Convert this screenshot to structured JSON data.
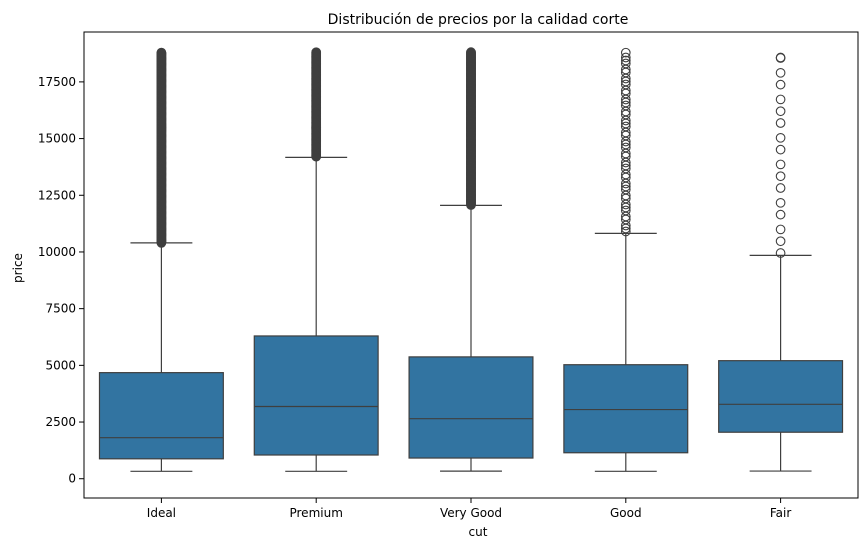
{
  "chart_data": {
    "type": "box",
    "title": "Distribución de precios por la calidad corte",
    "xlabel": "cut",
    "ylabel": "price",
    "ylim": [
      -850,
      19700
    ],
    "yticks": [
      0,
      2500,
      5000,
      7500,
      10000,
      12500,
      15000,
      17500
    ],
    "categories": [
      "Ideal",
      "Premium",
      "Very Good",
      "Good",
      "Fair"
    ],
    "box_color": "#3274a1",
    "line_color": "#3f3f3f",
    "grid": false,
    "boxes": [
      {
        "category": "Ideal",
        "whisker_low": 326,
        "q1": 878,
        "median": 1810,
        "q3": 4678,
        "whisker_high": 10400,
        "outlier_min": 10400,
        "outlier_max": 18806,
        "outlier_style": "dense"
      },
      {
        "category": "Premium",
        "whisker_low": 326,
        "q1": 1046,
        "median": 3185,
        "q3": 6296,
        "whisker_high": 14170,
        "outlier_min": 14200,
        "outlier_max": 18823,
        "outlier_style": "dense"
      },
      {
        "category": "Very Good",
        "whisker_low": 336,
        "q1": 912,
        "median": 2648,
        "q3": 5373,
        "whisker_high": 12055,
        "outlier_min": 12070,
        "outlier_max": 18818,
        "outlier_style": "dense"
      },
      {
        "category": "Good",
        "whisker_low": 327,
        "q1": 1145,
        "median": 3050,
        "q3": 5028,
        "whisker_high": 10820,
        "outlier_min": 10850,
        "outlier_max": 18788,
        "outlier_style": "medium"
      },
      {
        "category": "Fair",
        "whisker_low": 337,
        "q1": 2050,
        "median": 3282,
        "q3": 5206,
        "whisker_high": 9850,
        "outlier_min": 9900,
        "outlier_max": 18574,
        "outlier_style": "sparse"
      }
    ]
  }
}
